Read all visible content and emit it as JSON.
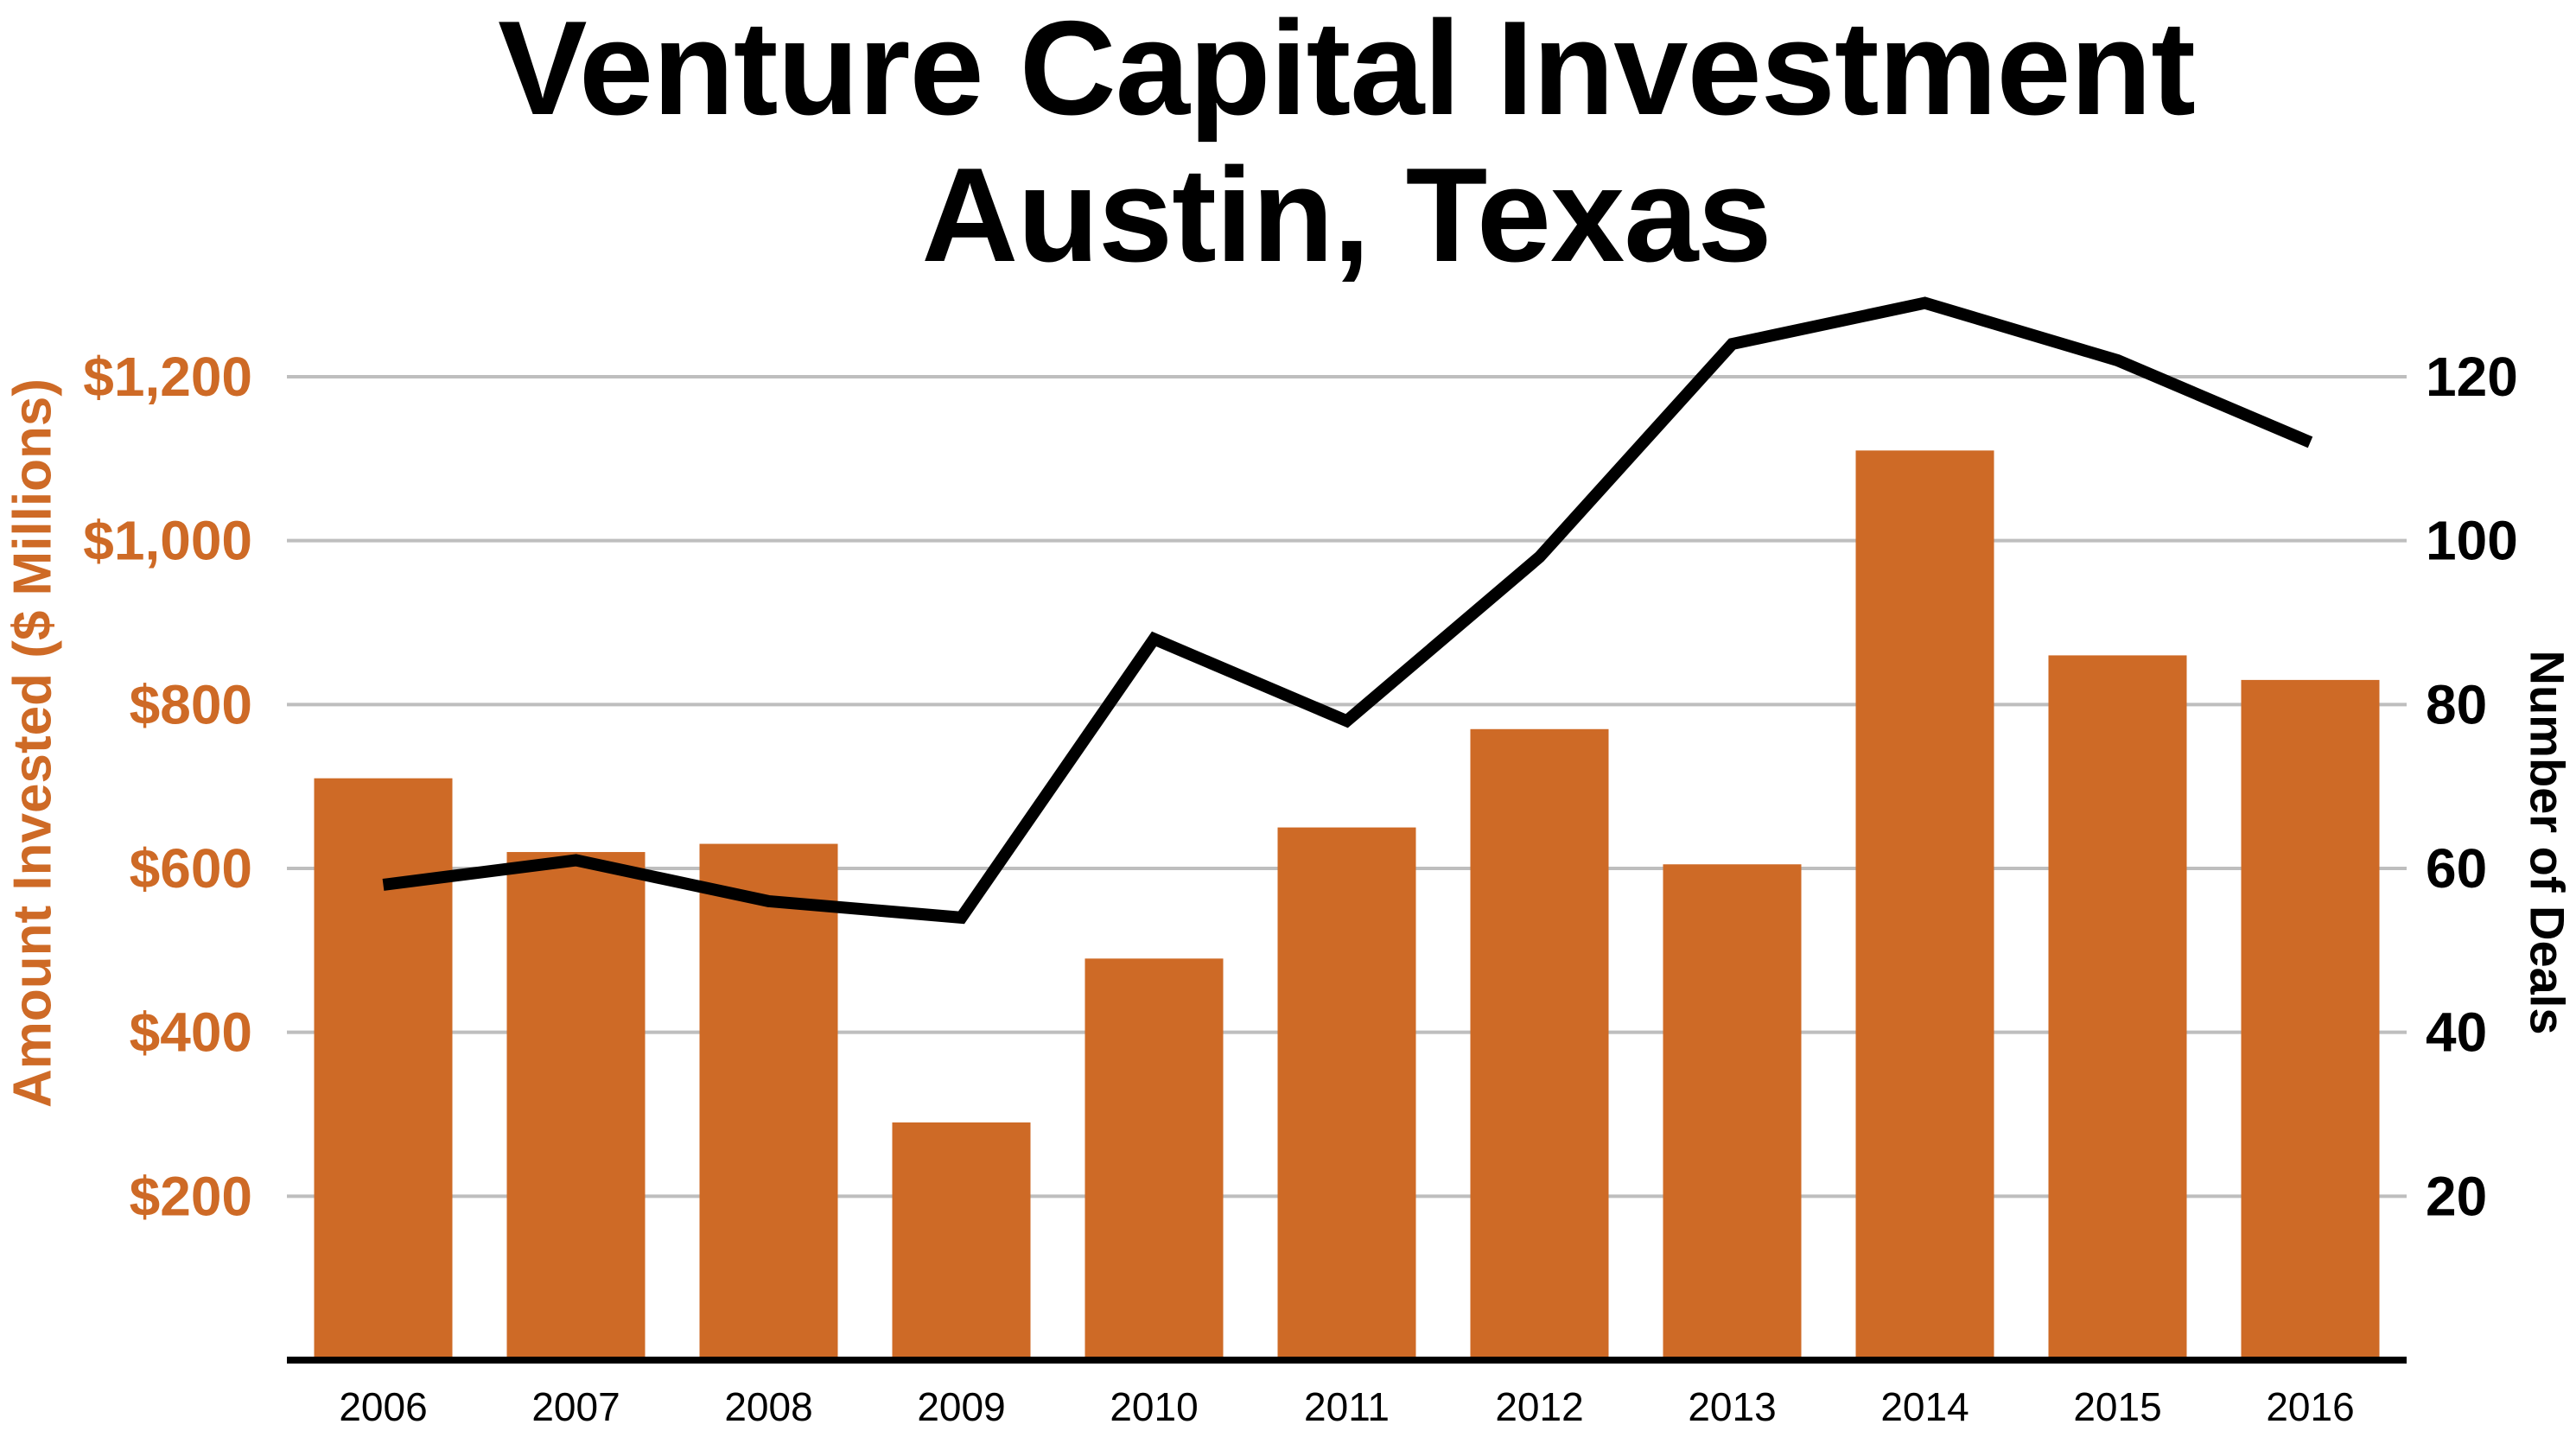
{
  "title": {
    "line1": "Venture Capital Investment",
    "line2": "Austin, Texas"
  },
  "left_axis": {
    "title": "Amount Invested ($ Millions)",
    "tick_labels": [
      "$1,200",
      "$1,000",
      "$800",
      "$600",
      "$400",
      "$200"
    ],
    "min": 0,
    "max": 1200,
    "color": "#CE6A26"
  },
  "right_axis": {
    "title": "Number of Deals",
    "tick_labels": [
      "120",
      "100",
      "80",
      "60",
      "40",
      "20"
    ],
    "min": 0,
    "max": 120,
    "color": "#000000"
  },
  "x_axis": {
    "labels": [
      "2006",
      "2007",
      "2008",
      "2009",
      "2010",
      "2011",
      "2012",
      "2013",
      "2014",
      "2015",
      "2016"
    ]
  },
  "chart_data": {
    "type": "bar",
    "title": "Venture Capital Investment Austin, Texas",
    "categories": [
      "2006",
      "2007",
      "2008",
      "2009",
      "2010",
      "2011",
      "2012",
      "2013",
      "2014",
      "2015",
      "2016"
    ],
    "series": [
      {
        "name": "Amount Invested ($ Millions)",
        "type": "bar",
        "axis": "left",
        "color": "#CE6A26",
        "values": [
          710,
          620,
          630,
          290,
          490,
          650,
          770,
          605,
          1110,
          860,
          830
        ]
      },
      {
        "name": "Number of Deals",
        "type": "line",
        "axis": "right",
        "color": "#000000",
        "values": [
          58,
          61,
          56,
          54,
          88,
          78,
          98,
          124,
          129,
          122,
          112
        ]
      }
    ],
    "left_ylim": [
      0,
      1200
    ],
    "right_ylim": [
      0,
      120
    ],
    "left_tick_step": 200,
    "right_tick_step": 20,
    "grid": true,
    "legend": false
  },
  "styles": {
    "background": "#FFFFFF",
    "bar_color": "#CE6A26",
    "line_color": "#000000",
    "gridline_color": "#BEBEBE",
    "axis_line_color": "#000000"
  }
}
